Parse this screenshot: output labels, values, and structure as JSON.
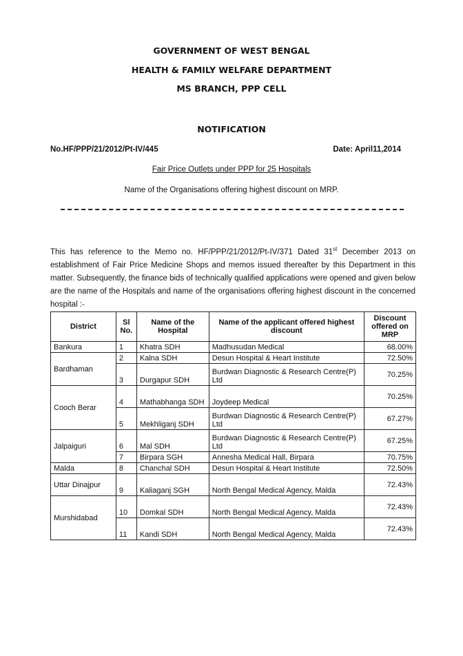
{
  "header": {
    "lines": [
      "GOVERNMENT OF WEST BENGAL",
      "HEALTH & FAMILY WELFARE DEPARTMENT",
      "MS BRANCH, PPP CELL"
    ]
  },
  "notification": {
    "title": "NOTIFICATION",
    "memo_no": "No.HF/PPP/21/2012/Pt-IV/445",
    "date": "Date: April11,2014",
    "subject": "Fair Price Outlets under PPP for 25 Hospitals",
    "subtitle": "Name of the Organisations offering highest discount on MRP."
  },
  "body": {
    "before": "This has reference to the Memo no. HF/PPP/21/2012/Pt-IV/371  Dated 31",
    "sup": "st",
    "after": " December 2013 on establishment of Fair Price Medicine Shops and  memos issued thereafter by this Department in this matter. Subsequently, the finance bids of technically qualified applications were opened and  given below are the name of the Hospitals and name of the organisations offering highest discount in the concerned hospital :-"
  },
  "table": {
    "headers": [
      "District",
      "Sl No.",
      "Name of the Hospital",
      "Name of the applicant offered highest discount",
      "Discount offered on MRP"
    ],
    "groups": [
      {
        "district": "Bankura",
        "rows": [
          {
            "sl": "1",
            "hospital": "Khatra SDH",
            "applicant": "Madhusudan Medical",
            "discount": "68.00%"
          }
        ]
      },
      {
        "district": "Bardhaman",
        "rows": [
          {
            "sl": "2",
            "hospital": "Kalna SDH",
            "applicant": "Desun Hospital & Heart Institute",
            "discount": "72.50%"
          },
          {
            "sl": "3",
            "hospital": "Durgapur SDH",
            "applicant": "Burdwan Diagnostic & Research Centre(P) Ltd",
            "discount": "70.25%"
          }
        ]
      },
      {
        "district": "Cooch Berar",
        "rows": [
          {
            "sl": "4",
            "hospital": "Mathabhanga SDH",
            "applicant": "Joydeep Medical",
            "discount": "70.25%"
          },
          {
            "sl": "5",
            "hospital": "Mekhliganj SDH",
            "applicant": "Burdwan Diagnostic & Research Centre(P) Ltd",
            "discount": "67.27%"
          }
        ]
      },
      {
        "district": "Jalpaiguri",
        "rows": [
          {
            "sl": "6",
            "hospital": "Mal SDH",
            "applicant": "Burdwan Diagnostic & Research Centre(P) Ltd",
            "discount": "67.25%"
          },
          {
            "sl": "7",
            "hospital": "Birpara SGH",
            "applicant": "Annesha Medical Hall, Birpara",
            "discount": "70.75%"
          }
        ]
      },
      {
        "district": "Malda",
        "rows": [
          {
            "sl": "8",
            "hospital": "Chanchal SDH",
            "applicant": "Desun Hospital & Heart Institute",
            "discount": "72.50%"
          }
        ]
      },
      {
        "district": "Uttar Dinajpur",
        "rows": [
          {
            "sl": "9",
            "hospital": "Kaliaganj SGH",
            "applicant": "North Bengal Medical Agency, Malda",
            "discount": "72.43%"
          }
        ]
      },
      {
        "district": "Murshidabad",
        "rows": [
          {
            "sl": "10",
            "hospital": "Domkal SDH",
            "applicant": "North Bengal Medical Agency, Malda",
            "discount": "72.43%"
          },
          {
            "sl": "11",
            "hospital": "Kandi SDH",
            "applicant": "North Bengal Medical Agency, Malda",
            "discount": "72.43%"
          }
        ]
      }
    ]
  }
}
